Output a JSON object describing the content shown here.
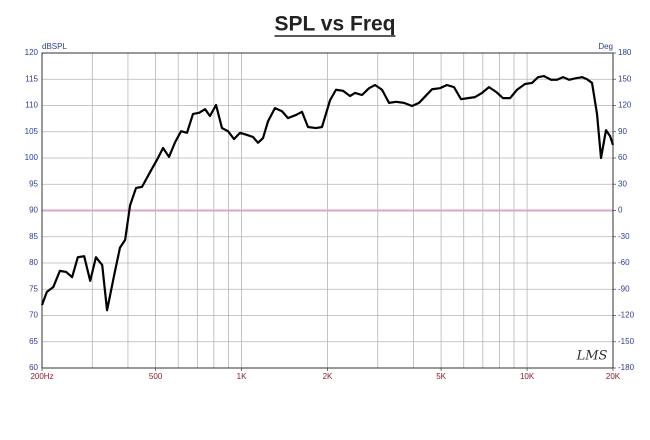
{
  "chart_data": {
    "type": "line",
    "title": "SPL vs Freq",
    "ylabel": "dBSPL",
    "y2label": "Deg",
    "watermark": "LMS",
    "xscale": "log",
    "xlim": [
      200,
      20000
    ],
    "xticks": [
      {
        "value": 200,
        "label": "200Hz"
      },
      {
        "value": 500,
        "label": "500"
      },
      {
        "value": 1000,
        "label": "1K"
      },
      {
        "value": 2000,
        "label": "2K"
      },
      {
        "value": 5000,
        "label": "5K"
      },
      {
        "value": 10000,
        "label": "10K"
      },
      {
        "value": 20000,
        "label": "20K"
      }
    ],
    "xgrid": [
      200,
      300,
      400,
      500,
      600,
      700,
      800,
      900,
      1000,
      2000,
      3000,
      4000,
      5000,
      6000,
      7000,
      8000,
      9000,
      10000,
      20000
    ],
    "ylim": [
      60,
      120
    ],
    "yticks": [
      60,
      65,
      70,
      75,
      80,
      85,
      90,
      95,
      100,
      105,
      110,
      115,
      120
    ],
    "y2lim": [
      -180,
      180
    ],
    "y2ticks": [
      -180,
      -150,
      -120,
      -90,
      -60,
      -30,
      0,
      30,
      60,
      90,
      120,
      150,
      180
    ],
    "grid": true,
    "reference_lines": [
      {
        "axis": "y2",
        "value": 0,
        "color": "#d8a6cf"
      }
    ],
    "x": [
      200,
      208,
      219,
      231,
      243,
      255,
      267,
      281,
      295,
      309,
      325,
      338,
      358,
      375,
      391,
      407,
      427,
      448,
      478,
      505,
      531,
      557,
      585,
      614,
      644,
      676,
      710,
      745,
      775,
      814,
      854,
      897,
      941,
      988,
      1045,
      1097,
      1142,
      1189,
      1238,
      1309,
      1386,
      1454,
      1552,
      1628,
      1709,
      1823,
      1913,
      2041,
      2142,
      2266,
      2398,
      2496,
      2641,
      2796,
      2934,
      3104,
      3285,
      3476,
      3707,
      3954,
      4184,
      4392,
      4647,
      4956,
      5243,
      5548,
      5870,
      6212,
      6573,
      6955,
      7359,
      7787,
      8239,
      8717,
      9223,
      9837,
      10408,
      10924,
      11466,
      12132,
      12736,
      13367,
      14030,
      14845,
      15581,
      16222,
      16888,
      17580,
      18156,
      18900,
      19522,
      20000
    ],
    "series": [
      {
        "color": "#000000",
        "values": [
          72.0,
          74.5,
          75.4,
          78.5,
          78.3,
          77.3,
          81.1,
          81.3,
          76.6,
          81.1,
          79.6,
          71.0,
          77.7,
          82.9,
          84.4,
          91.0,
          94.3,
          94.5,
          97.3,
          99.6,
          101.9,
          100.2,
          103.0,
          105.1,
          104.8,
          108.4,
          108.6,
          109.3,
          108.0,
          110.1,
          105.7,
          105.1,
          103.6,
          104.8,
          104.4,
          104.0,
          102.9,
          103.8,
          107.0,
          109.5,
          108.9,
          107.6,
          108.2,
          108.8,
          105.9,
          105.7,
          105.9,
          111.0,
          113.0,
          112.8,
          111.8,
          112.4,
          112.0,
          113.3,
          113.9,
          113.0,
          110.5,
          110.7,
          110.5,
          109.9,
          110.5,
          111.7,
          113.1,
          113.3,
          113.9,
          113.5,
          111.2,
          111.4,
          111.6,
          112.4,
          113.5,
          112.6,
          111.4,
          111.4,
          113.0,
          114.1,
          114.3,
          115.4,
          115.6,
          114.9,
          114.9,
          115.4,
          114.9,
          115.2,
          115.4,
          115.0,
          114.3,
          108.4,
          100.0,
          105.3,
          104.2,
          102.5
        ]
      }
    ]
  }
}
